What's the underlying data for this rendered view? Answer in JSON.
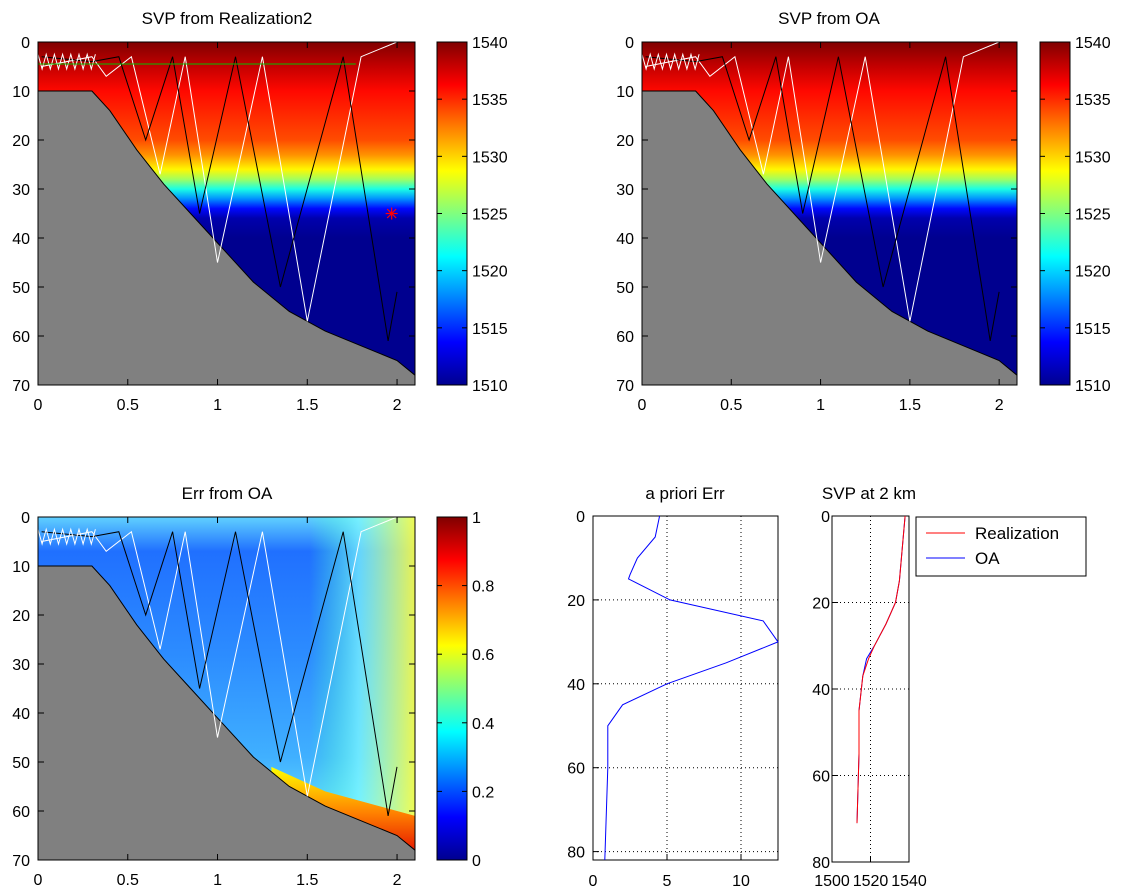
{
  "figure": {
    "panels": [
      {
        "id": "svp-realization",
        "title": "SVP from Realization2",
        "colorbar_ticks": [
          "1510",
          "1515",
          "1520",
          "1525",
          "1530",
          "1535",
          "1540"
        ]
      },
      {
        "id": "svp-oa",
        "title": "SVP from OA",
        "colorbar_ticks": [
          "1510",
          "1515",
          "1520",
          "1525",
          "1530",
          "1535",
          "1540"
        ]
      },
      {
        "id": "err-oa",
        "title": "Err from OA",
        "colorbar_ticks": [
          "0",
          "0.2",
          "0.4",
          "0.6",
          "0.8",
          "1"
        ]
      },
      {
        "id": "apriori-err",
        "title": "a priori Err"
      },
      {
        "id": "svp-at-2km",
        "title": "SVP at 2 km"
      }
    ],
    "map_x_ticks": [
      "0",
      "0.5",
      "1",
      "1.5",
      "2"
    ],
    "map_y_ticks": [
      "0",
      "10",
      "20",
      "30",
      "40",
      "50",
      "60",
      "70"
    ],
    "apriori_x_ticks": [
      "0",
      "5",
      "10"
    ],
    "profile_y_ticks": [
      "0",
      "20",
      "40",
      "60",
      "80"
    ],
    "svp2km_x_ticks": [
      "1500",
      "1520",
      "1540"
    ],
    "legend": [
      "Realization",
      "OA"
    ]
  },
  "colors": {
    "bathymetry": "#808080",
    "realization": "#ff0000",
    "oa": "#0000ff",
    "track_black": "#000000",
    "track_white": "#ffffff",
    "marker": "#ff0000",
    "green_line": "#00c000"
  },
  "chart_data": [
    {
      "type": "heatmap",
      "title": "SVP from Realization2",
      "xlabel": "",
      "ylabel": "",
      "xlim": [
        0,
        2.1
      ],
      "ylim": [
        70,
        0
      ],
      "clim": [
        1510,
        1540
      ],
      "profile_depth": [
        0,
        5,
        10,
        15,
        20,
        23,
        26,
        28,
        30,
        32,
        34,
        36,
        40,
        70
      ],
      "profile_speed": [
        1540,
        1538,
        1536,
        1535,
        1534,
        1532,
        1529,
        1526,
        1522,
        1518,
        1514,
        1511,
        1510,
        1510
      ],
      "bathymetry": {
        "x": [
          0,
          0.3,
          0.4,
          0.55,
          0.7,
          0.85,
          1.0,
          1.2,
          1.4,
          1.6,
          1.8,
          2.0,
          2.1
        ],
        "depth": [
          10,
          10,
          14,
          22,
          29,
          35,
          41,
          49,
          55,
          59,
          62,
          65,
          68
        ]
      },
      "track_black": {
        "x": [
          0.02,
          0.3,
          0.45,
          0.6,
          0.75,
          0.9,
          1.1,
          1.35,
          1.7,
          1.95,
          2.0
        ],
        "depth": [
          3,
          4,
          3,
          20,
          3,
          35,
          3,
          50,
          3,
          61,
          51
        ]
      },
      "track_white": {
        "x": [
          0.02,
          0.3,
          0.38,
          0.52,
          0.68,
          0.82,
          1.0,
          1.25,
          1.5,
          1.8,
          2.0
        ],
        "depth": [
          5,
          3,
          7,
          3,
          27,
          3,
          45,
          3,
          57,
          3,
          0
        ]
      },
      "green_line": {
        "x": [
          0,
          1.77
        ],
        "depth": [
          4.5,
          4.5
        ]
      },
      "marker": {
        "x": 1.97,
        "depth": 35
      }
    },
    {
      "type": "heatmap",
      "title": "SVP from OA",
      "xlabel": "",
      "ylabel": "",
      "xlim": [
        0,
        2.1
      ],
      "ylim": [
        70,
        0
      ],
      "clim": [
        1510,
        1540
      ],
      "profile_depth": [
        0,
        5,
        10,
        15,
        20,
        23,
        26,
        28,
        30,
        32,
        34,
        36,
        40,
        70
      ],
      "profile_speed": [
        1540,
        1538,
        1536,
        1535,
        1534,
        1532,
        1529,
        1526,
        1522,
        1518,
        1514,
        1511,
        1510,
        1510
      ],
      "bathymetry": {
        "x": [
          0,
          0.3,
          0.4,
          0.55,
          0.7,
          0.85,
          1.0,
          1.2,
          1.4,
          1.6,
          1.8,
          2.0,
          2.1
        ],
        "depth": [
          10,
          10,
          14,
          22,
          29,
          35,
          41,
          49,
          55,
          59,
          62,
          65,
          68
        ]
      },
      "track_black": {
        "x": [
          0.02,
          0.3,
          0.45,
          0.6,
          0.75,
          0.9,
          1.1,
          1.35,
          1.7,
          1.95,
          2.0
        ],
        "depth": [
          3,
          4,
          3,
          20,
          3,
          35,
          3,
          50,
          3,
          61,
          51
        ]
      },
      "track_white": {
        "x": [
          0.02,
          0.3,
          0.38,
          0.52,
          0.68,
          0.82,
          1.0,
          1.25,
          1.5,
          1.8,
          2.0
        ],
        "depth": [
          5,
          3,
          7,
          3,
          27,
          3,
          45,
          3,
          57,
          3,
          0
        ]
      }
    },
    {
      "type": "heatmap",
      "title": "Err from OA",
      "xlabel": "",
      "ylabel": "",
      "xlim": [
        0,
        2.1
      ],
      "ylim": [
        70,
        0
      ],
      "clim": [
        0,
        1
      ],
      "bathymetry": {
        "x": [
          0,
          0.3,
          0.4,
          0.55,
          0.7,
          0.85,
          1.0,
          1.2,
          1.4,
          1.6,
          1.8,
          2.0,
          2.1
        ],
        "depth": [
          10,
          10,
          14,
          22,
          29,
          35,
          41,
          49,
          55,
          59,
          62,
          65,
          68
        ]
      },
      "track_black": {
        "x": [
          0.02,
          0.3,
          0.45,
          0.6,
          0.75,
          0.9,
          1.1,
          1.35,
          1.7,
          1.95,
          2.0
        ],
        "depth": [
          3,
          4,
          3,
          20,
          3,
          35,
          3,
          50,
          3,
          61,
          51
        ]
      },
      "track_white": {
        "x": [
          0.02,
          0.3,
          0.38,
          0.52,
          0.68,
          0.82,
          1.0,
          1.25,
          1.5,
          1.8,
          2.0
        ],
        "depth": [
          5,
          3,
          7,
          3,
          27,
          3,
          45,
          3,
          57,
          3,
          0
        ]
      }
    },
    {
      "type": "line",
      "title": "a priori Err",
      "xlabel": "",
      "ylabel": "",
      "xlim": [
        0,
        12.5
      ],
      "ylim": [
        82,
        0
      ],
      "grid": true,
      "series": [
        {
          "values_x": [
            4.5,
            4.2,
            3.0,
            2.5,
            2.4,
            5.2,
            11.5,
            12.5,
            9.0,
            5.0,
            2.0,
            1.0,
            1.0,
            0.8
          ],
          "values_depth": [
            0,
            5,
            10,
            14,
            15,
            20,
            25,
            30,
            35,
            40,
            45,
            50,
            60,
            82
          ]
        }
      ]
    },
    {
      "type": "line",
      "title": "SVP at 2 km",
      "xlabel": "",
      "ylabel": "",
      "xlim": [
        1500,
        1540
      ],
      "ylim": [
        80,
        0
      ],
      "grid": true,
      "legend_position": "top-right",
      "series": [
        {
          "name": "Realization",
          "values_x": [
            1538,
            1537,
            1536,
            1535,
            1533,
            1528,
            1522,
            1519,
            1516,
            1514,
            1514,
            1513
          ],
          "values_depth": [
            0,
            5,
            10,
            15,
            20,
            25,
            30,
            33,
            37,
            45,
            55,
            71
          ]
        },
        {
          "name": "OA",
          "values_x": [
            1538,
            1537,
            1536,
            1535,
            1533,
            1528,
            1522,
            1518,
            1516,
            1514,
            1514,
            1513
          ],
          "values_depth": [
            0,
            5,
            10,
            15,
            20,
            25,
            30,
            33,
            37,
            45,
            55,
            71
          ]
        }
      ]
    }
  ]
}
